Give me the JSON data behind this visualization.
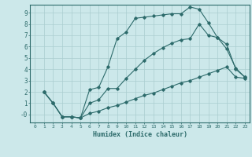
{
  "xlabel": "Humidex (Indice chaleur)",
  "bg_color": "#cce8ea",
  "line_color": "#2d6b6b",
  "grid_color": "#aacdd0",
  "xlim": [
    -0.5,
    23.5
  ],
  "ylim": [
    -0.7,
    9.7
  ],
  "xticks": [
    0,
    1,
    2,
    3,
    4,
    5,
    6,
    7,
    8,
    9,
    10,
    11,
    12,
    13,
    14,
    15,
    16,
    17,
    18,
    19,
    20,
    21,
    22,
    23
  ],
  "yticks": [
    0,
    1,
    2,
    3,
    4,
    5,
    6,
    7,
    8,
    9
  ],
  "ytick_labels": [
    "-0",
    "1",
    "2",
    "3",
    "4",
    "5",
    "6",
    "7",
    "8",
    "9"
  ],
  "line1_x": [
    1,
    2,
    3,
    4,
    5,
    6,
    7,
    8,
    9,
    10,
    11,
    12,
    13,
    14,
    15,
    16,
    17,
    18,
    19,
    20,
    21,
    22,
    23
  ],
  "line1_y": [
    2.0,
    1.0,
    -0.2,
    -0.2,
    -0.3,
    2.2,
    2.4,
    4.2,
    6.7,
    7.3,
    8.5,
    8.6,
    8.7,
    8.8,
    8.9,
    8.9,
    9.5,
    9.3,
    8.1,
    6.8,
    5.8,
    4.1,
    3.3
  ],
  "line2_x": [
    1,
    2,
    3,
    4,
    5,
    6,
    7,
    8,
    9,
    10,
    11,
    12,
    13,
    14,
    15,
    16,
    17,
    18,
    19,
    20,
    21,
    22,
    23
  ],
  "line2_y": [
    2.0,
    1.0,
    -0.2,
    -0.2,
    -0.3,
    1.0,
    1.3,
    2.3,
    2.3,
    3.2,
    4.0,
    4.8,
    5.4,
    5.9,
    6.3,
    6.6,
    6.7,
    8.0,
    7.0,
    6.8,
    6.2,
    4.0,
    3.3
  ],
  "line3_x": [
    1,
    2,
    3,
    4,
    5,
    6,
    7,
    8,
    9,
    10,
    11,
    12,
    13,
    14,
    15,
    16,
    17,
    18,
    19,
    20,
    21,
    22,
    23
  ],
  "line3_y": [
    2.0,
    1.0,
    -0.2,
    -0.2,
    -0.3,
    0.1,
    0.3,
    0.6,
    0.8,
    1.1,
    1.4,
    1.7,
    1.9,
    2.2,
    2.5,
    2.8,
    3.0,
    3.3,
    3.6,
    3.9,
    4.2,
    3.3,
    3.2
  ]
}
